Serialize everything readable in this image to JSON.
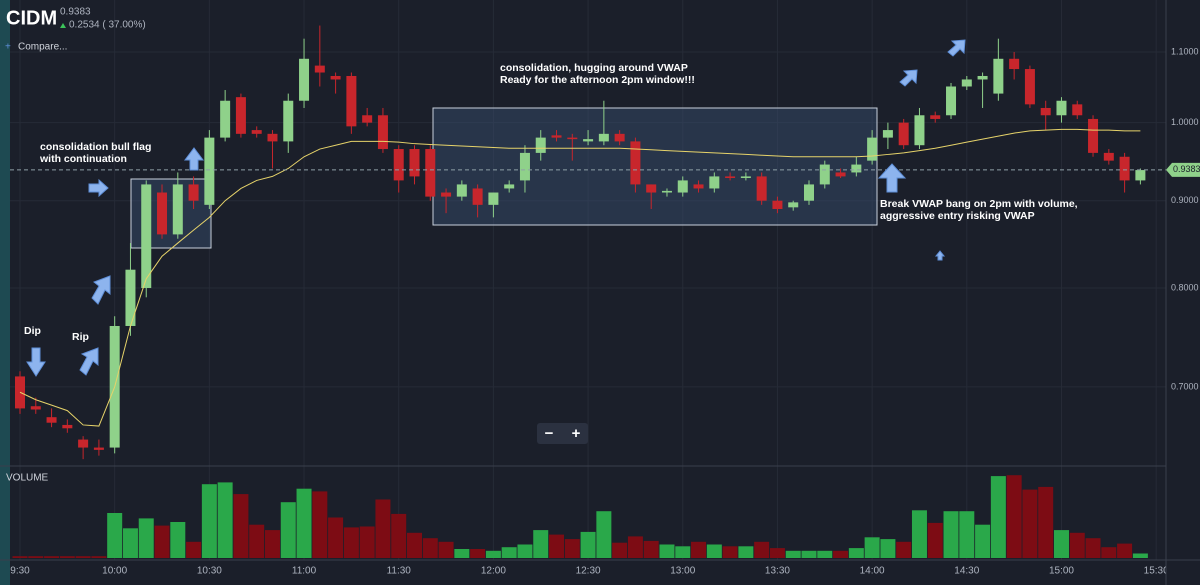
{
  "chart_data": {
    "type": "candlestick",
    "symbol": "CIDM",
    "last": "0.9383",
    "change": "0.2534 ( 37.00%)",
    "compare": "Compare...",
    "volume_label": "VOLUME",
    "zoom": [
      "−",
      "+"
    ],
    "log_scale": true,
    "grid": true,
    "ylim": [
      0.63,
      1.18
    ],
    "yticks": [
      {
        "value": 0.7,
        "label": "0.7000"
      },
      {
        "value": 0.8,
        "label": "0.8000"
      },
      {
        "value": 0.9,
        "label": "0.9000"
      },
      {
        "value": 1.0,
        "label": "1.0000"
      },
      {
        "value": 1.1,
        "label": "1.1000"
      }
    ],
    "xticks": [
      {
        "value": 0,
        "label": "9:30"
      },
      {
        "value": 6,
        "label": "10:00"
      },
      {
        "value": 12,
        "label": "10:30"
      },
      {
        "value": 18,
        "label": "11:00"
      },
      {
        "value": 24,
        "label": "11:30"
      },
      {
        "value": 30,
        "label": "12:00"
      },
      {
        "value": 36,
        "label": "12:30"
      },
      {
        "value": 42,
        "label": "13:00"
      },
      {
        "value": 48,
        "label": "13:30"
      },
      {
        "value": 54,
        "label": "14:00"
      },
      {
        "value": 60,
        "label": "14:30"
      },
      {
        "value": 66,
        "label": "15:00"
      },
      {
        "value": 72,
        "label": "15:30"
      }
    ],
    "price_tag": {
      "value": 0.9383,
      "label": "0.938300"
    },
    "up_color": "#8fd18a",
    "down_color": "#c8262c",
    "volume_up_color": "#2aa84a",
    "volume_down_color": "#7d0c14",
    "vwap_color": "#e6d36a",
    "open": [
      0.71,
      0.682,
      0.672,
      0.665,
      0.652,
      0.645,
      0.645,
      0.76,
      0.8,
      0.91,
      0.86,
      0.92,
      0.895,
      0.98,
      1.035,
      0.99,
      0.985,
      0.975,
      1.03,
      1.08,
      1.065,
      1.065,
      1.01,
      1.01,
      0.965,
      0.965,
      0.965,
      0.91,
      0.905,
      0.915,
      0.895,
      0.915,
      0.925,
      0.96,
      0.983,
      0.98,
      0.975,
      0.975,
      0.985,
      0.975,
      0.92,
      0.91,
      0.91,
      0.92,
      0.915,
      0.93,
      0.928,
      0.93,
      0.9,
      0.892,
      0.9,
      0.92,
      0.935,
      0.935,
      0.95,
      0.98,
      1.0,
      0.97,
      1.01,
      1.01,
      1.05,
      1.06,
      1.04,
      1.09,
      1.075,
      1.02,
      1.01,
      1.025,
      1.005,
      0.96,
      0.955,
      0.925
    ],
    "high": [
      0.715,
      0.69,
      0.68,
      0.67,
      0.655,
      0.652,
      0.77,
      0.85,
      0.925,
      0.92,
      0.935,
      0.93,
      0.99,
      1.045,
      1.04,
      0.995,
      0.99,
      1.04,
      1.12,
      1.14,
      1.07,
      1.07,
      1.02,
      1.02,
      0.97,
      0.97,
      0.97,
      0.915,
      0.925,
      0.92,
      0.91,
      0.925,
      0.97,
      0.99,
      0.99,
      0.985,
      0.99,
      1.03,
      0.99,
      0.98,
      0.92,
      0.915,
      0.93,
      0.925,
      0.935,
      0.935,
      0.935,
      0.935,
      0.905,
      0.9,
      0.925,
      0.95,
      0.94,
      0.955,
      0.99,
      1.0,
      1.005,
      1.02,
      1.015,
      1.055,
      1.065,
      1.07,
      1.12,
      1.1,
      1.08,
      1.03,
      1.035,
      1.03,
      1.01,
      0.965,
      0.96,
      0.94
    ],
    "low": [
      0.675,
      0.675,
      0.663,
      0.658,
      0.635,
      0.638,
      0.64,
      0.75,
      0.79,
      0.855,
      0.855,
      0.89,
      0.89,
      0.975,
      0.98,
      0.98,
      0.94,
      0.96,
      1.02,
      1.05,
      1.04,
      0.985,
      0.995,
      0.96,
      0.91,
      0.92,
      0.9,
      0.885,
      0.9,
      0.88,
      0.88,
      0.91,
      0.91,
      0.95,
      0.975,
      0.95,
      0.97,
      0.97,
      0.97,
      0.91,
      0.89,
      0.905,
      0.905,
      0.91,
      0.91,
      0.925,
      0.925,
      0.895,
      0.885,
      0.888,
      0.895,
      0.915,
      0.928,
      0.93,
      0.945,
      0.965,
      0.965,
      0.965,
      1.0,
      1.005,
      1.045,
      1.02,
      1.03,
      1.06,
      1.02,
      0.99,
      1.0,
      1.005,
      0.955,
      0.945,
      0.91,
      0.92
    ],
    "close": [
      0.68,
      0.679,
      0.667,
      0.662,
      0.645,
      0.643,
      0.76,
      0.82,
      0.92,
      0.86,
      0.92,
      0.9,
      0.98,
      1.03,
      0.985,
      0.985,
      0.975,
      1.03,
      1.09,
      1.07,
      1.06,
      0.995,
      1.0,
      0.965,
      0.925,
      0.93,
      0.905,
      0.905,
      0.92,
      0.895,
      0.91,
      0.92,
      0.96,
      0.98,
      0.98,
      0.978,
      0.978,
      0.985,
      0.975,
      0.92,
      0.91,
      0.912,
      0.925,
      0.915,
      0.93,
      0.928,
      0.93,
      0.9,
      0.89,
      0.898,
      0.92,
      0.945,
      0.93,
      0.945,
      0.98,
      0.99,
      0.97,
      1.01,
      1.005,
      1.05,
      1.06,
      1.065,
      1.09,
      1.075,
      1.025,
      1.01,
      1.03,
      1.01,
      0.96,
      0.95,
      0.925,
      0.938
    ],
    "volume": [
      2,
      2,
      2,
      2,
      2,
      2,
      50,
      33,
      44,
      36,
      40,
      18,
      82,
      84,
      71,
      37,
      31,
      62,
      77,
      74,
      45,
      34,
      35,
      65,
      49,
      28,
      22,
      18,
      10,
      10,
      8,
      12,
      15,
      31,
      26,
      21,
      29,
      52,
      17,
      24,
      19,
      15,
      13,
      18,
      15,
      13,
      13,
      18,
      11,
      8,
      8,
      8,
      8,
      11,
      23,
      21,
      18,
      53,
      39,
      52,
      52,
      37,
      91,
      92,
      76,
      79,
      31,
      28,
      22,
      12,
      16,
      5
    ],
    "vlim": [
      0,
      100
    ],
    "vwap": [
      0.695,
      0.688,
      0.683,
      0.678,
      0.665,
      0.664,
      0.7,
      0.76,
      0.81,
      0.835,
      0.85,
      0.865,
      0.88,
      0.9,
      0.915,
      0.925,
      0.93,
      0.94,
      0.955,
      0.965,
      0.97,
      0.975,
      0.975,
      0.975,
      0.974,
      0.972,
      0.971,
      0.97,
      0.969,
      0.968,
      0.967,
      0.966,
      0.966,
      0.966,
      0.966,
      0.966,
      0.966,
      0.966,
      0.966,
      0.965,
      0.964,
      0.963,
      0.962,
      0.961,
      0.96,
      0.959,
      0.958,
      0.957,
      0.956,
      0.955,
      0.955,
      0.955,
      0.955,
      0.955,
      0.956,
      0.958,
      0.96,
      0.963,
      0.966,
      0.97,
      0.974,
      0.978,
      0.982,
      0.986,
      0.989,
      0.99,
      0.991,
      0.991,
      0.99,
      0.99,
      0.989,
      0.989
    ],
    "annotations": {
      "flag": [
        "consolidation bull flag",
        "with continuation"
      ],
      "dip": "Dip",
      "rip": "Rip",
      "hug": [
        "consolidation, hugging around VWAP",
        "Ready for the afternoon 2pm window!!!"
      ],
      "break": [
        "Break VWAP bang on 2pm with volume,",
        "aggressive entry risking VWAP"
      ]
    }
  }
}
